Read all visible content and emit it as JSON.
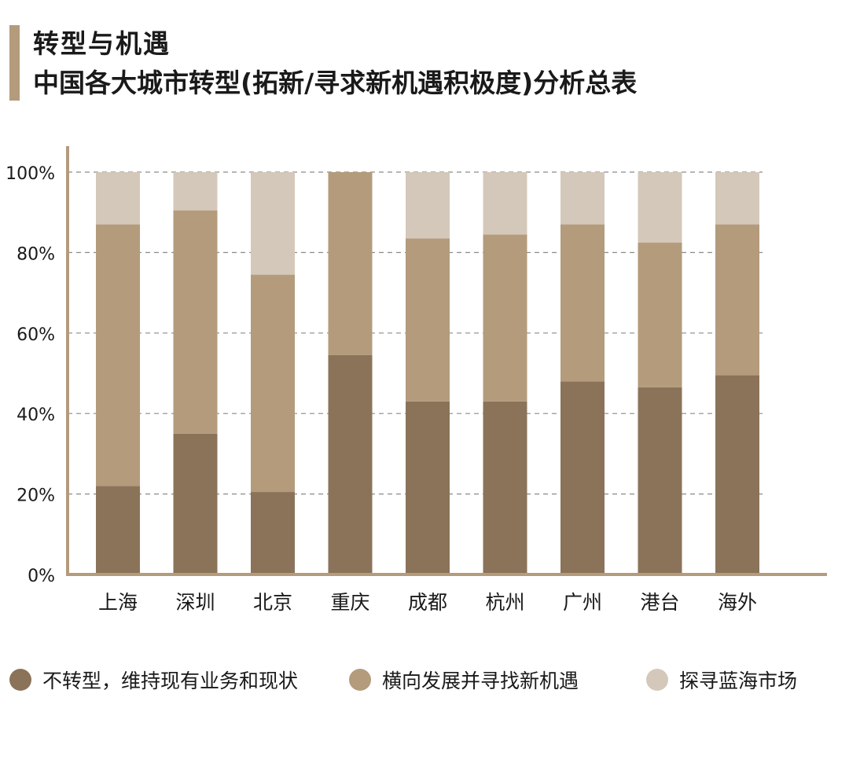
{
  "header": {
    "title": "转型与机遇",
    "subtitle": "中国各大城市转型(拓新/寻求新机遇积极度)分析总表"
  },
  "colors": {
    "accent": "#b39b7c",
    "grid": "#8a8a8a",
    "axis": "#b39b7c"
  },
  "chart_data": {
    "type": "bar",
    "stacked": true,
    "categories": [
      "上海",
      "深圳",
      "北京",
      "重庆",
      "成都",
      "杭州",
      "广州",
      "港台",
      "海外"
    ],
    "series": [
      {
        "name": "不转型，维持现有业务和现状",
        "color": "#8b7359",
        "values": [
          22,
          35,
          20.5,
          54.5,
          43,
          43,
          48,
          46.5,
          49.5
        ]
      },
      {
        "name": "横向发展并寻找新机遇",
        "color": "#b39b7c",
        "values": [
          65,
          55.5,
          54,
          45.5,
          40.5,
          41.5,
          39,
          36,
          37.5
        ]
      },
      {
        "name": "探寻蓝海市场",
        "color": "#d4c8bb",
        "values": [
          13,
          9.5,
          25.5,
          0,
          16.5,
          15.5,
          13,
          17.5,
          13
        ]
      }
    ],
    "yticks": [
      "0%",
      "20%",
      "40%",
      "60%",
      "80%",
      "100%"
    ],
    "ylim": [
      0,
      100
    ],
    "grid": true,
    "legend_position": "bottom"
  }
}
